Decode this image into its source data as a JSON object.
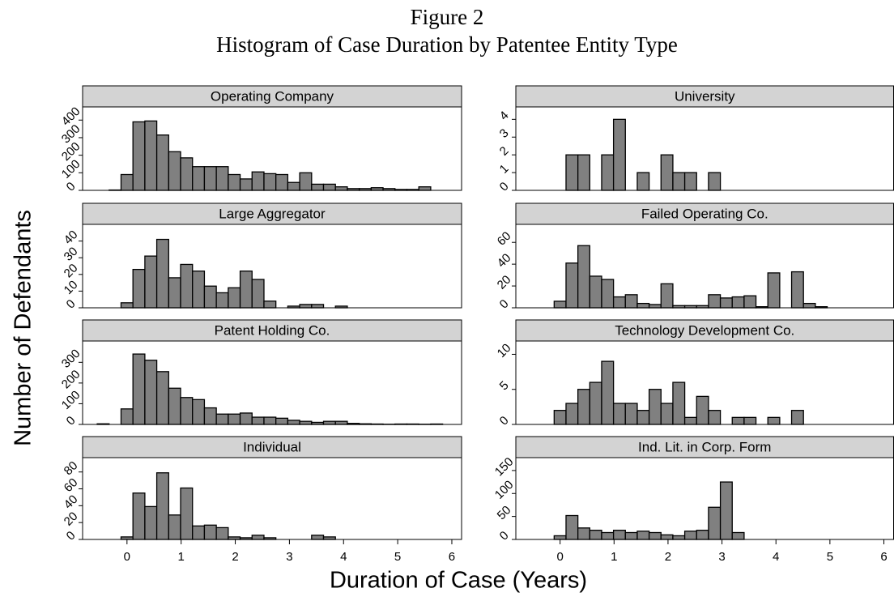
{
  "figure": {
    "title": "Figure 2",
    "subtitle": "Histogram of Case Duration by Patentee Entity Type",
    "x_label": "Duration of Case (Years)",
    "y_label": "Number of Defendants"
  },
  "chart_data": [
    {
      "type": "histogram",
      "title": "Operating Company",
      "color": "#808080",
      "bins": [
        -0.55,
        -0.33,
        -0.11,
        0.11,
        0.33,
        0.55,
        0.77,
        0.99,
        1.21,
        1.43,
        1.65,
        1.87,
        2.09,
        2.31,
        2.53,
        2.75,
        2.97,
        3.19,
        3.41,
        3.63,
        3.85,
        4.07,
        4.29,
        4.51,
        4.73,
        4.95,
        5.17,
        5.39,
        5.61,
        5.83
      ],
      "values": [
        0,
        2,
        90,
        390,
        395,
        315,
        220,
        185,
        135,
        135,
        135,
        90,
        65,
        105,
        95,
        90,
        45,
        100,
        35,
        35,
        20,
        10,
        10,
        15,
        10,
        5,
        5,
        20,
        0
      ],
      "xlim": [
        -0.82,
        6.18
      ],
      "ylim": [
        0,
        475
      ],
      "yticks": [
        0,
        100,
        200,
        300,
        400
      ]
    },
    {
      "type": "histogram",
      "title": "University",
      "color": "#808080",
      "bins": [
        -0.55,
        -0.33,
        -0.11,
        0.11,
        0.33,
        0.55,
        0.77,
        0.99,
        1.21,
        1.43,
        1.65,
        1.87,
        2.09,
        2.31,
        2.53,
        2.75,
        2.97,
        3.19,
        3.41,
        3.63,
        3.85,
        4.07,
        4.29,
        4.51,
        4.73,
        4.95,
        5.17,
        5.39,
        5.61,
        5.83
      ],
      "values": [
        0,
        0,
        0,
        2,
        2,
        0,
        2,
        4,
        0,
        1,
        0,
        2,
        1,
        1,
        0,
        1,
        0,
        0,
        0,
        0,
        0,
        0,
        0,
        0,
        0,
        0,
        0,
        0,
        0
      ],
      "xlim": [
        -0.82,
        6.18
      ],
      "ylim": [
        0,
        4.7
      ],
      "yticks": [
        0,
        1,
        2,
        3,
        4
      ]
    },
    {
      "type": "histogram",
      "title": "Large Aggregator",
      "color": "#808080",
      "bins": [
        -0.55,
        -0.33,
        -0.11,
        0.11,
        0.33,
        0.55,
        0.77,
        0.99,
        1.21,
        1.43,
        1.65,
        1.87,
        2.09,
        2.31,
        2.53,
        2.75,
        2.97,
        3.19,
        3.41,
        3.63,
        3.85,
        4.07,
        4.29,
        4.51,
        4.73,
        4.95,
        5.17,
        5.39,
        5.61,
        5.83
      ],
      "values": [
        0,
        0,
        3,
        23,
        31,
        41,
        18,
        26,
        22,
        13,
        9,
        12,
        22,
        17,
        4,
        0,
        1,
        2,
        2,
        0,
        1,
        0,
        0,
        0,
        0,
        0,
        0,
        0,
        0
      ],
      "xlim": [
        -0.82,
        6.18
      ],
      "ylim": [
        0,
        50
      ],
      "yticks": [
        0,
        10,
        20,
        30,
        40
      ]
    },
    {
      "type": "histogram",
      "title": "Failed Operating Co.",
      "color": "#808080",
      "bins": [
        -0.55,
        -0.33,
        -0.11,
        0.11,
        0.33,
        0.55,
        0.77,
        0.99,
        1.21,
        1.43,
        1.65,
        1.87,
        2.09,
        2.31,
        2.53,
        2.75,
        2.97,
        3.19,
        3.41,
        3.63,
        3.85,
        4.07,
        4.29,
        4.51,
        4.73,
        4.95,
        5.17,
        5.39,
        5.61,
        5.83
      ],
      "values": [
        0,
        0,
        6,
        41,
        57,
        29,
        26,
        10,
        12,
        4,
        3,
        22,
        2,
        2,
        2,
        12,
        9,
        10,
        11,
        1,
        32,
        0,
        33,
        4,
        1,
        0,
        0,
        0,
        0
      ],
      "xlim": [
        -0.82,
        6.18
      ],
      "ylim": [
        0,
        76.5
      ],
      "yticks": [
        0,
        20,
        40,
        60
      ]
    },
    {
      "type": "histogram",
      "title": "Patent Holding Co.",
      "color": "#808080",
      "bins": [
        -0.55,
        -0.33,
        -0.11,
        0.11,
        0.33,
        0.55,
        0.77,
        0.99,
        1.21,
        1.43,
        1.65,
        1.87,
        2.09,
        2.31,
        2.53,
        2.75,
        2.97,
        3.19,
        3.41,
        3.63,
        3.85,
        4.07,
        4.29,
        4.51,
        4.73,
        4.95,
        5.17,
        5.39,
        5.61,
        5.83
      ],
      "values": [
        3,
        0,
        75,
        340,
        310,
        255,
        175,
        130,
        120,
        80,
        50,
        50,
        55,
        35,
        35,
        30,
        20,
        15,
        10,
        15,
        15,
        5,
        3,
        2,
        1,
        2,
        2,
        1,
        2
      ],
      "xlim": [
        -0.82,
        6.18
      ],
      "ylim": [
        0,
        403
      ],
      "yticks": [
        0,
        100,
        200,
        300
      ]
    },
    {
      "type": "histogram",
      "title": "Technology Development Co.",
      "color": "#808080",
      "bins": [
        -0.55,
        -0.33,
        -0.11,
        0.11,
        0.33,
        0.55,
        0.77,
        0.99,
        1.21,
        1.43,
        1.65,
        1.87,
        2.09,
        2.31,
        2.53,
        2.75,
        2.97,
        3.19,
        3.41,
        3.63,
        3.85,
        4.07,
        4.29,
        4.51,
        4.73,
        4.95,
        5.17,
        5.39,
        5.61,
        5.83
      ],
      "values": [
        0,
        0,
        2,
        3,
        5,
        6,
        9,
        3,
        3,
        2,
        5,
        3,
        6,
        1,
        4,
        2,
        0,
        1,
        1,
        0,
        1,
        0,
        2,
        0,
        0,
        0,
        0,
        0,
        0
      ],
      "xlim": [
        -0.82,
        6.18
      ],
      "ylim": [
        0,
        11.9
      ],
      "yticks": [
        0,
        5,
        10
      ]
    },
    {
      "type": "histogram",
      "title": "Individual",
      "color": "#808080",
      "bins": [
        -0.55,
        -0.33,
        -0.11,
        0.11,
        0.33,
        0.55,
        0.77,
        0.99,
        1.21,
        1.43,
        1.65,
        1.87,
        2.09,
        2.31,
        2.53,
        2.75,
        2.97,
        3.19,
        3.41,
        3.63,
        3.85,
        4.07,
        4.29,
        4.51,
        4.73,
        4.95,
        5.17,
        5.39,
        5.61,
        5.83
      ],
      "values": [
        0,
        0,
        3,
        55,
        39,
        79,
        29,
        61,
        16,
        17,
        14,
        3,
        2,
        5,
        2,
        0,
        0,
        0,
        5,
        3,
        0,
        0,
        0,
        0,
        0,
        0,
        0,
        0,
        0
      ],
      "xlim": [
        -0.82,
        6.18
      ],
      "ylim": [
        0,
        97
      ],
      "yticks": [
        0,
        20,
        40,
        60,
        80
      ],
      "xticks": [
        0,
        1,
        2,
        3,
        4,
        5,
        6
      ]
    },
    {
      "type": "histogram",
      "title": "Ind. Lit. in Corp. Form",
      "color": "#808080",
      "bins": [
        -0.55,
        -0.33,
        -0.11,
        0.11,
        0.33,
        0.55,
        0.77,
        0.99,
        1.21,
        1.43,
        1.65,
        1.87,
        2.09,
        2.31,
        2.53,
        2.75,
        2.97,
        3.19,
        3.41,
        3.63,
        3.85,
        4.07,
        4.29,
        4.51,
        4.73,
        4.95,
        5.17,
        5.39,
        5.61,
        5.83
      ],
      "values": [
        0,
        0,
        8,
        52,
        25,
        20,
        15,
        20,
        15,
        18,
        15,
        10,
        8,
        18,
        20,
        70,
        125,
        15,
        0,
        0,
        0,
        0,
        0,
        0,
        0,
        0,
        0,
        0,
        0
      ],
      "xlim": [
        -0.82,
        6.18
      ],
      "ylim": [
        0,
        178
      ],
      "yticks": [
        0,
        50,
        100,
        150
      ],
      "xticks": [
        0,
        1,
        2,
        3,
        4,
        5,
        6
      ]
    }
  ]
}
